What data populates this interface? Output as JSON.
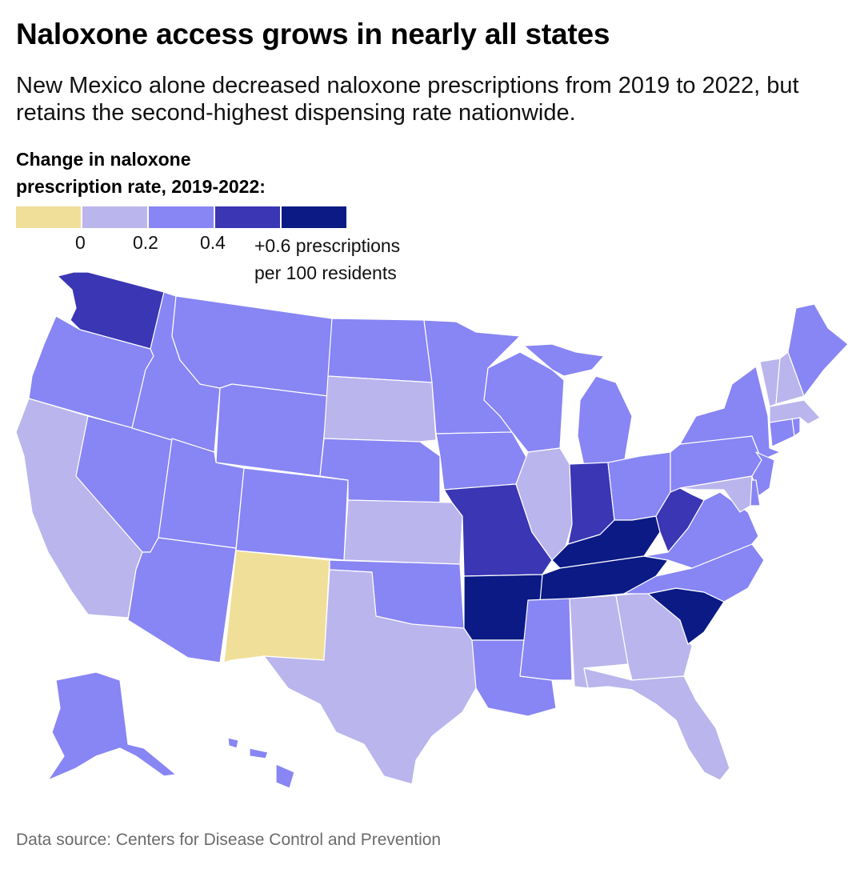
{
  "title": "Naloxone access grows in nearly all states",
  "subtitle": "New Mexico alone decreased naloxone prescriptions from 2019 to 2022, but retains the second-highest dispensing rate nationwide.",
  "legend": {
    "title_line1": "Change in naloxone",
    "title_line2": "prescription rate, 2019-2022:",
    "colors": [
      "#f0df99",
      "#bab5ec",
      "#8885f4",
      "#3a36b4",
      "#0b1a85"
    ],
    "ticks": [
      "0",
      "0.2",
      "0.4"
    ],
    "unit_line1": "+0.6 prescriptions",
    "unit_line2": "per 100 residents"
  },
  "bins": {
    "below_0": "#f0df99",
    "0_to_0.2": "#bab5ec",
    "0.2_to_0.4": "#8885f4",
    "0.4_to_0.6": "#3a36b4",
    "above_0.6": "#0b1a85"
  },
  "states": [
    {
      "code": "WA",
      "bin": "0.4_to_0.6"
    },
    {
      "code": "OR",
      "bin": "0.2_to_0.4"
    },
    {
      "code": "CA",
      "bin": "0_to_0.2"
    },
    {
      "code": "NV",
      "bin": "0.2_to_0.4"
    },
    {
      "code": "ID",
      "bin": "0.2_to_0.4"
    },
    {
      "code": "MT",
      "bin": "0.2_to_0.4"
    },
    {
      "code": "WY",
      "bin": "0.2_to_0.4"
    },
    {
      "code": "UT",
      "bin": "0.2_to_0.4"
    },
    {
      "code": "AZ",
      "bin": "0.2_to_0.4"
    },
    {
      "code": "CO",
      "bin": "0.2_to_0.4"
    },
    {
      "code": "NM",
      "bin": "below_0"
    },
    {
      "code": "ND",
      "bin": "0.2_to_0.4"
    },
    {
      "code": "SD",
      "bin": "0_to_0.2"
    },
    {
      "code": "NE",
      "bin": "0.2_to_0.4"
    },
    {
      "code": "KS",
      "bin": "0_to_0.2"
    },
    {
      "code": "OK",
      "bin": "0.2_to_0.4"
    },
    {
      "code": "TX",
      "bin": "0_to_0.2"
    },
    {
      "code": "MN",
      "bin": "0.2_to_0.4"
    },
    {
      "code": "IA",
      "bin": "0.2_to_0.4"
    },
    {
      "code": "MO",
      "bin": "0.4_to_0.6"
    },
    {
      "code": "AR",
      "bin": "above_0.6"
    },
    {
      "code": "LA",
      "bin": "0.2_to_0.4"
    },
    {
      "code": "WI",
      "bin": "0.2_to_0.4"
    },
    {
      "code": "IL",
      "bin": "0_to_0.2"
    },
    {
      "code": "MI",
      "bin": "0.2_to_0.4"
    },
    {
      "code": "IN",
      "bin": "0.4_to_0.6"
    },
    {
      "code": "OH",
      "bin": "0.2_to_0.4"
    },
    {
      "code": "KY",
      "bin": "above_0.6"
    },
    {
      "code": "TN",
      "bin": "above_0.6"
    },
    {
      "code": "MS",
      "bin": "0.2_to_0.4"
    },
    {
      "code": "AL",
      "bin": "0_to_0.2"
    },
    {
      "code": "GA",
      "bin": "0_to_0.2"
    },
    {
      "code": "FL",
      "bin": "0_to_0.2"
    },
    {
      "code": "SC",
      "bin": "above_0.6"
    },
    {
      "code": "NC",
      "bin": "0.2_to_0.4"
    },
    {
      "code": "VA",
      "bin": "0.2_to_0.4"
    },
    {
      "code": "WV",
      "bin": "0.4_to_0.6"
    },
    {
      "code": "PA",
      "bin": "0.2_to_0.4"
    },
    {
      "code": "NY",
      "bin": "0.2_to_0.4"
    },
    {
      "code": "NJ",
      "bin": "0.2_to_0.4"
    },
    {
      "code": "DE",
      "bin": "0.2_to_0.4"
    },
    {
      "code": "MD",
      "bin": "0_to_0.2"
    },
    {
      "code": "CT",
      "bin": "0.2_to_0.4"
    },
    {
      "code": "RI",
      "bin": "0.2_to_0.4"
    },
    {
      "code": "MA",
      "bin": "0_to_0.2"
    },
    {
      "code": "VT",
      "bin": "0_to_0.2"
    },
    {
      "code": "NH",
      "bin": "0_to_0.2"
    },
    {
      "code": "ME",
      "bin": "0.2_to_0.4"
    },
    {
      "code": "AK",
      "bin": "0.2_to_0.4"
    },
    {
      "code": "HI",
      "bin": "0.2_to_0.4"
    }
  ],
  "source": "Data source: Centers for Disease Control and Prevention"
}
